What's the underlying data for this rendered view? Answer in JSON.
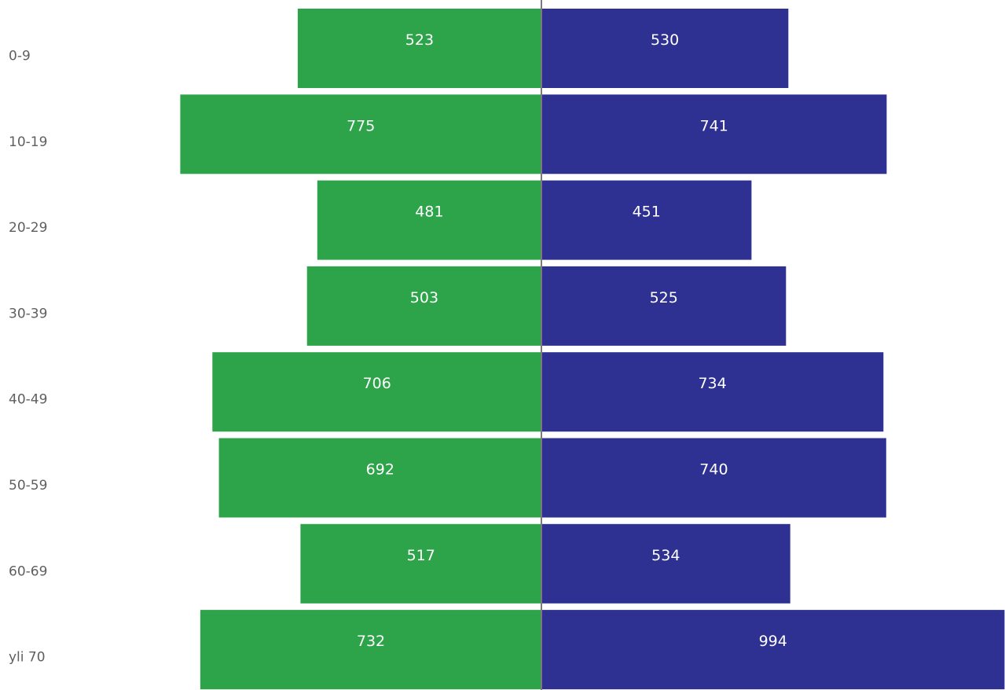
{
  "chart_data": {
    "type": "bar",
    "orientation": "horizontal-diverging",
    "categories": [
      "0-9",
      "10-19",
      "20-29",
      "30-39",
      "40-49",
      "50-59",
      "60-69",
      "yli 70"
    ],
    "series": [
      {
        "values": [
          523,
          775,
          481,
          503,
          706,
          692,
          517,
          732
        ],
        "color": "#2ea44a",
        "side": "left"
      },
      {
        "values": [
          530,
          741,
          451,
          525,
          734,
          740,
          534,
          994
        ],
        "color": "#2e3192",
        "side": "right"
      }
    ],
    "data_labels": true,
    "grid": false,
    "legend": "none",
    "center_line_color": "#7a7a7a"
  }
}
